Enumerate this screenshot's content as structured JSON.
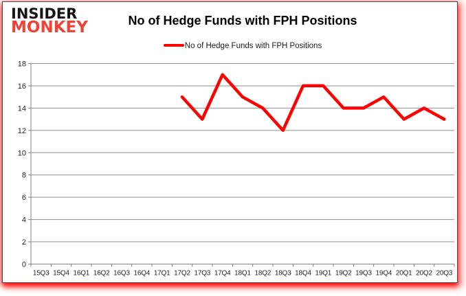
{
  "brand": {
    "line1": "INSIDER",
    "line2": "MONKEY",
    "line1_color": "#141414",
    "line2_color": "#ee4437"
  },
  "title": "No of Hedge Funds with FPH Positions",
  "legend": {
    "label": "No of Hedge Funds with FPH Positions",
    "swatch_color": "#ff0000"
  },
  "colors": {
    "series_line": "#ff0000",
    "gridline": "#8e8e8e",
    "axis": "#7f7f7f",
    "tick_label": "#1f1f1f",
    "box_border": "#4a4a4a",
    "shadow_glow": "#ff0000",
    "background": "#ffffff"
  },
  "chart_data": {
    "type": "line",
    "title": "No of Hedge Funds with FPH Positions",
    "categories": [
      "15Q3",
      "15Q4",
      "16Q1",
      "16Q2",
      "16Q3",
      "16Q4",
      "17Q1",
      "17Q2",
      "17Q3",
      "17Q4",
      "18Q1",
      "18Q2",
      "18Q3",
      "18Q4",
      "19Q1",
      "19Q2",
      "19Q3",
      "19Q4",
      "20Q1",
      "20Q2",
      "20Q3"
    ],
    "series": [
      {
        "name": "No of Hedge Funds with FPH Positions",
        "color": "#ff0000",
        "values": [
          null,
          null,
          null,
          null,
          null,
          null,
          null,
          15,
          13,
          17,
          15,
          14,
          12,
          16,
          16,
          14,
          14,
          15,
          13,
          14,
          13
        ]
      }
    ],
    "xlabel": "",
    "ylabel": "",
    "ylim": [
      0,
      18
    ],
    "y_ticks": [
      0,
      2,
      4,
      6,
      8,
      10,
      12,
      14,
      16,
      18
    ],
    "grid": true,
    "legend_position": "top-center"
  }
}
